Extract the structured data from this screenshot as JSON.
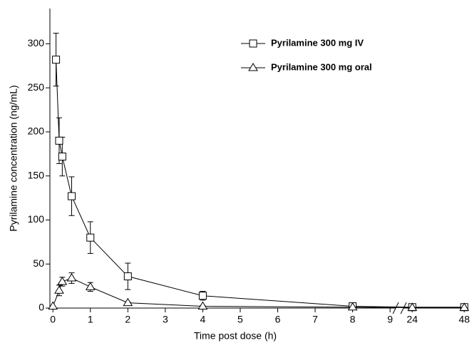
{
  "chart_data": {
    "type": "line",
    "x_label": "Time post dose (h)",
    "y_label": "Pyrilamine concentration (ng/mL)",
    "ylim": [
      0,
      340
    ],
    "yticks": [
      0,
      50,
      100,
      150,
      200,
      250,
      300
    ],
    "x_segments": [
      {
        "xlim": [
          -0.08,
          9.15
        ],
        "xticks": [
          0,
          1,
          2,
          3,
          4,
          5,
          6,
          7,
          8,
          9
        ]
      },
      {
        "xlim": [
          20,
          49.6
        ],
        "xticks": [
          24,
          48
        ]
      }
    ],
    "grid": false,
    "series": [
      {
        "name": "Pyrilamine 300 mg IV",
        "marker": "square",
        "color": "#000000",
        "x": [
          0.083,
          0.167,
          0.25,
          0.5,
          1,
          2,
          4,
          8,
          24,
          48
        ],
        "values": [
          282,
          190,
          172,
          127,
          80,
          36,
          14,
          2,
          1,
          1
        ],
        "errors": [
          30,
          26,
          22,
          22,
          18,
          15,
          5,
          1,
          null,
          null
        ]
      },
      {
        "name": "Pyrilamine 300  mg oral",
        "marker": "triangle",
        "color": "#000000",
        "x": [
          0,
          0.167,
          0.25,
          0.5,
          1,
          2,
          4,
          8,
          24,
          48
        ],
        "values": [
          2,
          20,
          30,
          34,
          24,
          6,
          2,
          1,
          0.5,
          0.5
        ],
        "errors": [
          null,
          6,
          5,
          6,
          5,
          1,
          1,
          null,
          null,
          null
        ]
      }
    ]
  }
}
